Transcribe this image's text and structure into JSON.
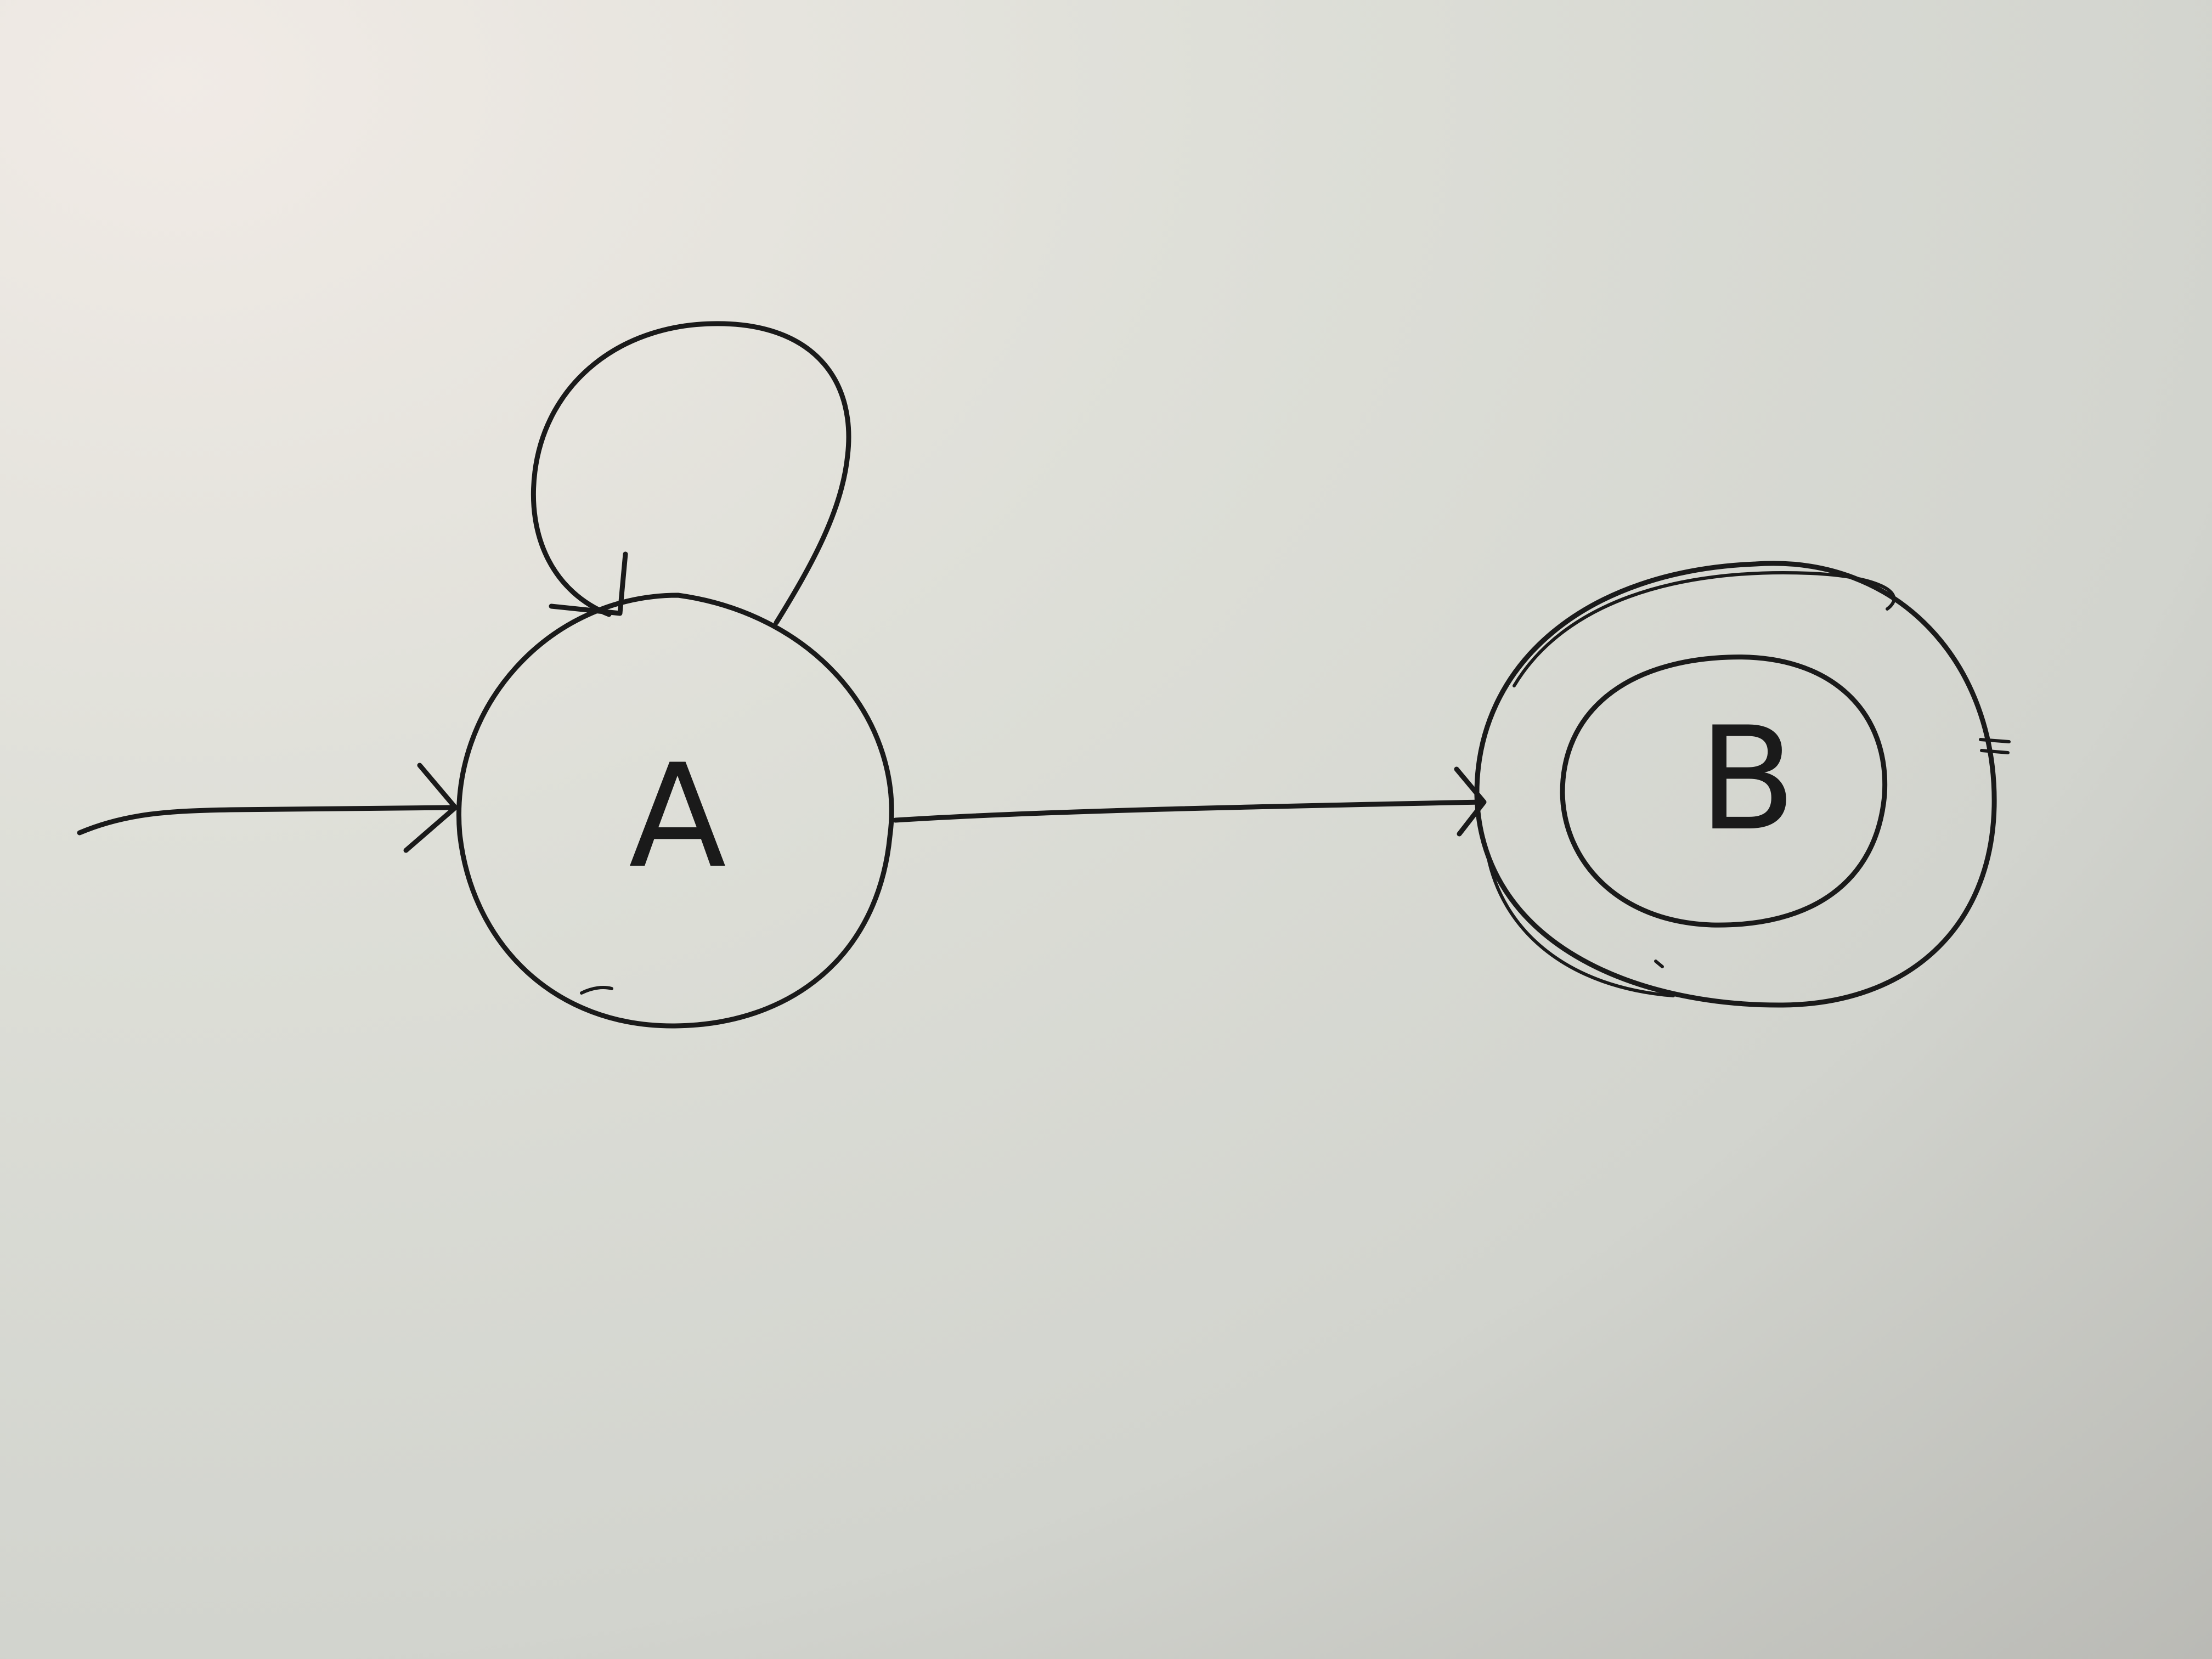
{
  "diagram": {
    "type": "finite-automaton",
    "states": [
      {
        "id": "A",
        "label": "A",
        "initial": true,
        "accepting": false,
        "self_loop": true
      },
      {
        "id": "B",
        "label": "B",
        "initial": false,
        "accepting": true,
        "self_loop": false
      }
    ],
    "transitions": [
      {
        "from": "start",
        "to": "A",
        "label": ""
      },
      {
        "from": "A",
        "to": "A",
        "label": ""
      },
      {
        "from": "A",
        "to": "B",
        "label": ""
      }
    ]
  },
  "colors": {
    "ink": "#1a1a1a",
    "paper_light": "#eeeae4",
    "paper_mid": "#d8dad3",
    "paper_dark": "#bdbdb7"
  }
}
